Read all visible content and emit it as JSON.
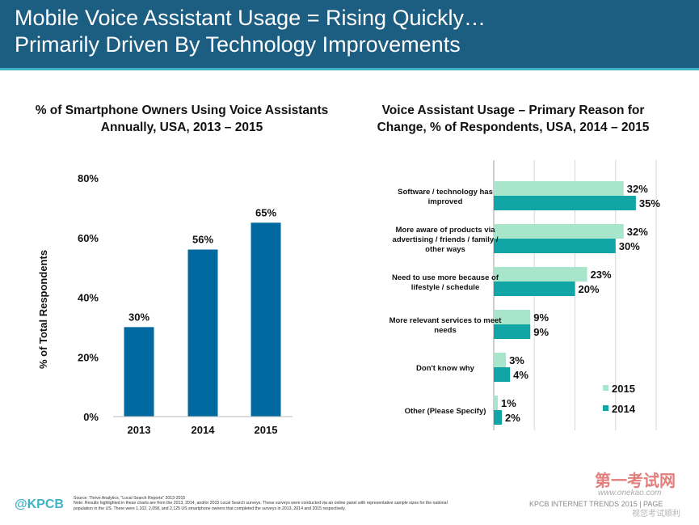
{
  "header": {
    "title_line1": "Mobile Voice Assistant Usage = Rising Quickly…",
    "title_line2": "Primarily Driven By Technology Improvements"
  },
  "colors": {
    "header_bg": "#1c5d82",
    "accent": "#3fb4c6",
    "bar_2014": "#12a5a5",
    "bar_2015": "#a8e6cc",
    "bar_left": "#006aa0"
  },
  "chart_data": [
    {
      "type": "bar",
      "title_line1": "% of Smartphone Owners Using Voice Assistants",
      "title_line2": "Annually, USA, 2013 – 2015",
      "ylabel": "% of Total Respondents",
      "xlabel": "",
      "categories": [
        "2013",
        "2014",
        "2015"
      ],
      "values": [
        30,
        56,
        65
      ],
      "value_labels": [
        "30%",
        "56%",
        "65%"
      ],
      "ylim": [
        0,
        80
      ],
      "yticks": [
        0,
        20,
        40,
        60,
        80
      ],
      "ytick_labels": [
        "0%",
        "20%",
        "40%",
        "60%",
        "80%"
      ],
      "grid": false
    },
    {
      "type": "bar",
      "orientation": "horizontal",
      "title_line1": "Voice Assistant Usage – Primary Reason for",
      "title_line2": "Change, % of Respondents, USA, 2014 – 2015",
      "categories": [
        [
          "Software / technology has",
          "improved"
        ],
        [
          "More aware of products via",
          "advertising / friends / family /",
          "other ways"
        ],
        [
          "Need to use more because of",
          "lifestyle / schedule"
        ],
        [
          "More relevant services to meet",
          "needs"
        ],
        [
          "Don't know why"
        ],
        [
          "Other (Please Specify)"
        ]
      ],
      "series": [
        {
          "name": "2015",
          "values": [
            32,
            32,
            23,
            9,
            3,
            1
          ],
          "labels": [
            "32%",
            "32%",
            "23%",
            "9%",
            "3%",
            "1%"
          ]
        },
        {
          "name": "2014",
          "values": [
            35,
            30,
            20,
            9,
            4,
            2
          ],
          "labels": [
            "35%",
            "30%",
            "20%",
            "9%",
            "4%",
            "2%"
          ]
        }
      ],
      "xlim": [
        0,
        40
      ],
      "grid": true,
      "legend_position": "bottom-right"
    }
  ],
  "footer": {
    "logo": "@KPCB",
    "source": "Source: Thrive Analytics, \"Local Search Reports\" 2013-2015",
    "note_line1": "Note: Results highlighted in these charts are from the 2013, 2014, and/or 2015 Local Search surveys. These surveys were conducted via an online panel with representative sample sizes for the national",
    "note_line2": "population in the US. There were 1,102, 2,058, and 2,125 US smartphone owners that completed the surveys in 2013, 2014 and 2015 respectively.",
    "right_text": "KPCB INTERNET TRENDS 2015 | PAGE"
  },
  "watermark": {
    "line1": "第一考试网",
    "line2": "www.onekao.com",
    "line3": "视您考试顺利"
  }
}
